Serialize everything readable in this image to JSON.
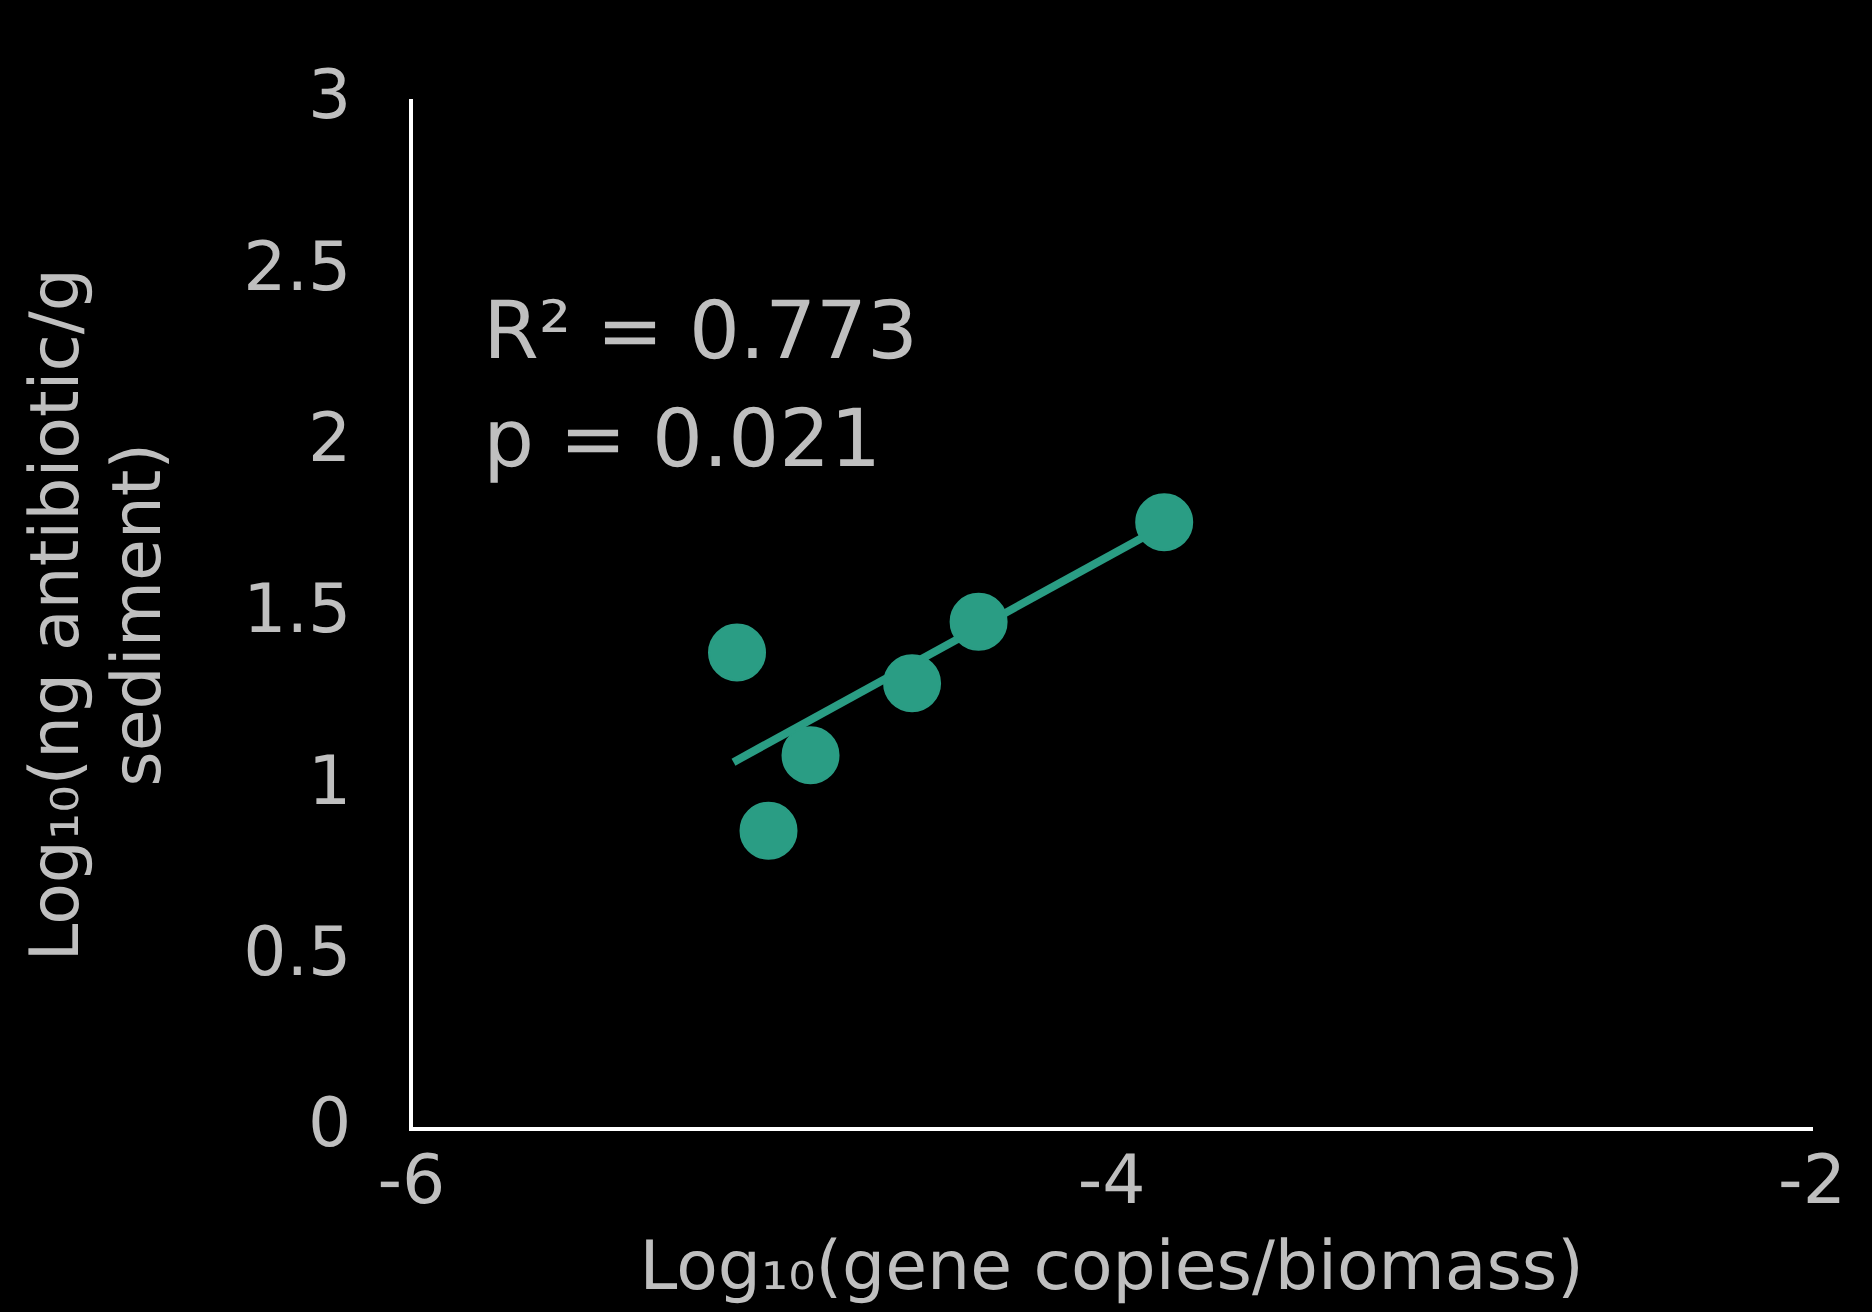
{
  "chart_data": {
    "type": "scatter",
    "xlabel": "Log₁₀(gene copies/biomass)",
    "ylabel": "Log₁₀(ng antibiotic/g sediment)",
    "annotations": [
      "R² = 0.773",
      "p = 0.021"
    ],
    "series": [
      {
        "color": "#2a9d84",
        "marker": "circle",
        "x": [
          -5.07,
          -4.98,
          -4.86,
          -4.57,
          -4.38,
          -3.85
        ],
        "values": [
          1.39,
          0.87,
          1.09,
          1.3,
          1.48,
          1.77
        ]
      },
      {
        "type": "line",
        "marker": "none",
        "color": "#2a9d84",
        "x": [
          -5.08,
          -3.85
        ],
        "values": [
          1.07,
          1.76
        ]
      }
    ],
    "xlim": [
      -6,
      -2
    ],
    "xticks": [
      -6,
      -4,
      -2
    ],
    "ylim": [
      0,
      3
    ],
    "yticks": [
      0,
      0.5,
      1,
      1.5,
      2,
      2.5,
      3
    ],
    "grid": false,
    "legend": false,
    "line_style": "solid"
  }
}
